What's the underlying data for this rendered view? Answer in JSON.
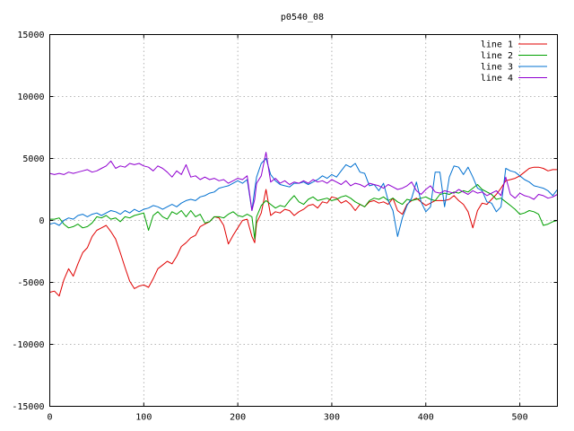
{
  "chart_data": {
    "type": "line",
    "title": "p0540_08",
    "xlabel": "",
    "ylabel": "",
    "xlim": [
      0,
      540
    ],
    "ylim": [
      -15000,
      15000
    ],
    "xticks": [
      0,
      100,
      200,
      300,
      400,
      500
    ],
    "yticks": [
      -15000,
      -10000,
      -5000,
      0,
      5000,
      10000,
      15000
    ],
    "grid": true,
    "legend_position": "top-right",
    "series": [
      {
        "name": "line 1",
        "color": "#e00000",
        "x": [
          0,
          5,
          10,
          15,
          20,
          25,
          30,
          35,
          40,
          45,
          50,
          55,
          60,
          65,
          70,
          75,
          80,
          85,
          90,
          95,
          100,
          105,
          110,
          115,
          120,
          125,
          130,
          135,
          140,
          145,
          150,
          155,
          160,
          165,
          170,
          175,
          180,
          185,
          190,
          195,
          200,
          205,
          210,
          215,
          218,
          220,
          225,
          230,
          235,
          240,
          245,
          250,
          255,
          260,
          265,
          270,
          275,
          280,
          285,
          290,
          295,
          300,
          305,
          310,
          315,
          320,
          325,
          330,
          335,
          340,
          345,
          350,
          355,
          360,
          365,
          370,
          375,
          380,
          385,
          390,
          395,
          400,
          405,
          410,
          415,
          420,
          425,
          430,
          435,
          440,
          445,
          450,
          455,
          460,
          465,
          470,
          475,
          480,
          485,
          490,
          495,
          500,
          505,
          510,
          515,
          520,
          525,
          530,
          535,
          540
        ],
        "y": [
          -5800,
          -5700,
          -6100,
          -4800,
          -3900,
          -4500,
          -3500,
          -2600,
          -2200,
          -1300,
          -800,
          -600,
          -400,
          -900,
          -1500,
          -2600,
          -3800,
          -4900,
          -5500,
          -5300,
          -5200,
          -5400,
          -4700,
          -3900,
          -3600,
          -3300,
          -3500,
          -2900,
          -2100,
          -1800,
          -1400,
          -1200,
          -500,
          -300,
          -100,
          300,
          200,
          -400,
          -1900,
          -1200,
          -600,
          0,
          100,
          -1300,
          -1800,
          -200,
          600,
          2500,
          400,
          700,
          600,
          900,
          800,
          400,
          700,
          900,
          1200,
          1300,
          1000,
          1500,
          1400,
          1900,
          1800,
          1400,
          1600,
          1300,
          800,
          1300,
          1100,
          1500,
          1600,
          1400,
          1500,
          1300,
          1800,
          800,
          500,
          1300,
          1600,
          1800,
          1500,
          1200,
          1400,
          1600,
          1600,
          1600,
          1700,
          2000,
          1600,
          1300,
          700,
          -600,
          800,
          1400,
          1300,
          1700,
          2100,
          2600,
          3200,
          3300,
          3400,
          3600,
          3900,
          4200,
          4300,
          4300,
          4200,
          4000,
          4100,
          4100
        ]
      },
      {
        "name": "line 2",
        "color": "#00a000",
        "x": [
          0,
          5,
          10,
          15,
          20,
          25,
          30,
          35,
          40,
          45,
          50,
          55,
          60,
          65,
          70,
          75,
          80,
          85,
          90,
          95,
          100,
          105,
          110,
          115,
          120,
          125,
          130,
          135,
          140,
          145,
          150,
          155,
          160,
          165,
          170,
          175,
          180,
          185,
          190,
          195,
          200,
          205,
          210,
          215,
          218,
          220,
          225,
          230,
          235,
          240,
          245,
          250,
          255,
          260,
          265,
          270,
          275,
          280,
          285,
          290,
          295,
          300,
          305,
          310,
          315,
          320,
          325,
          330,
          335,
          340,
          345,
          350,
          355,
          360,
          365,
          370,
          375,
          380,
          385,
          390,
          395,
          400,
          405,
          410,
          415,
          420,
          425,
          430,
          435,
          440,
          445,
          450,
          455,
          460,
          465,
          470,
          475,
          480,
          485,
          490,
          495,
          500,
          505,
          510,
          515,
          520,
          525,
          530,
          535,
          540
        ],
        "y": [
          100,
          100,
          200,
          -300,
          -600,
          -500,
          -300,
          -600,
          -500,
          -200,
          300,
          200,
          400,
          100,
          200,
          -100,
          300,
          200,
          400,
          500,
          600,
          -800,
          400,
          700,
          300,
          100,
          700,
          500,
          800,
          300,
          800,
          300,
          500,
          -200,
          -100,
          300,
          300,
          200,
          500,
          700,
          400,
          300,
          500,
          300,
          -1500,
          300,
          1200,
          1600,
          1300,
          1000,
          1200,
          1100,
          1600,
          2000,
          1500,
          1300,
          1700,
          1900,
          1600,
          1700,
          1800,
          1600,
          1700,
          1900,
          2000,
          1800,
          1500,
          1300,
          1100,
          1600,
          1800,
          1700,
          1900,
          1600,
          1800,
          1500,
          1300,
          1700,
          1600,
          1700,
          1800,
          1900,
          1700,
          1600,
          2100,
          2200,
          2100,
          2300,
          2200,
          2400,
          2300,
          2600,
          2900,
          2500,
          2300,
          2100,
          1700,
          1800,
          1500,
          1200,
          900,
          500,
          600,
          800,
          700,
          500,
          -400,
          -300,
          -100,
          0
        ]
      },
      {
        "name": "line 3",
        "color": "#0070d0",
        "x": [
          0,
          5,
          10,
          15,
          20,
          25,
          30,
          35,
          40,
          45,
          50,
          55,
          60,
          65,
          70,
          75,
          80,
          85,
          90,
          95,
          100,
          105,
          110,
          115,
          120,
          125,
          130,
          135,
          140,
          145,
          150,
          155,
          160,
          165,
          170,
          175,
          180,
          185,
          190,
          195,
          200,
          205,
          210,
          215,
          218,
          220,
          225,
          230,
          235,
          240,
          245,
          250,
          255,
          260,
          265,
          270,
          275,
          280,
          285,
          290,
          295,
          300,
          305,
          310,
          315,
          320,
          325,
          330,
          335,
          340,
          345,
          350,
          355,
          360,
          365,
          370,
          375,
          380,
          385,
          390,
          395,
          400,
          405,
          410,
          415,
          420,
          425,
          430,
          435,
          440,
          445,
          450,
          455,
          460,
          465,
          470,
          475,
          480,
          485,
          490,
          495,
          500,
          505,
          510,
          515,
          520,
          525,
          530,
          535,
          540
        ],
        "y": [
          -300,
          -200,
          -400,
          0,
          200,
          100,
          400,
          500,
          300,
          500,
          600,
          400,
          600,
          800,
          700,
          500,
          800,
          600,
          900,
          700,
          900,
          1000,
          1200,
          1100,
          900,
          1100,
          1300,
          1100,
          1400,
          1600,
          1700,
          1600,
          1900,
          2000,
          2200,
          2300,
          2600,
          2700,
          2800,
          3000,
          3200,
          3000,
          3300,
          800,
          2500,
          3500,
          4600,
          5000,
          3700,
          3200,
          2900,
          2800,
          2700,
          3000,
          3000,
          3100,
          2900,
          3100,
          3300,
          3600,
          3400,
          3700,
          3500,
          4000,
          4500,
          4300,
          4600,
          3900,
          3800,
          2800,
          2900,
          2400,
          3000,
          1600,
          800,
          -1300,
          200,
          1200,
          1800,
          3100,
          1500,
          700,
          1100,
          3900,
          3900,
          1100,
          3500,
          4400,
          4300,
          3700,
          4300,
          3500,
          2600,
          2400,
          1500,
          1400,
          700,
          1100,
          4200,
          4000,
          3900,
          3600,
          3300,
          3100,
          2800,
          2700,
          2600,
          2400,
          2000,
          2500
        ]
      },
      {
        "name": "line 4",
        "color": "#9000d0",
        "x": [
          0,
          5,
          10,
          15,
          20,
          25,
          30,
          35,
          40,
          45,
          50,
          55,
          60,
          65,
          70,
          75,
          80,
          85,
          90,
          95,
          100,
          105,
          110,
          115,
          120,
          125,
          130,
          135,
          140,
          145,
          150,
          155,
          160,
          165,
          170,
          175,
          180,
          185,
          190,
          195,
          200,
          205,
          210,
          215,
          218,
          220,
          225,
          230,
          235,
          240,
          245,
          250,
          255,
          260,
          265,
          270,
          275,
          280,
          285,
          290,
          295,
          300,
          305,
          310,
          315,
          320,
          325,
          330,
          335,
          340,
          345,
          350,
          355,
          360,
          365,
          370,
          375,
          380,
          385,
          390,
          395,
          400,
          405,
          410,
          415,
          420,
          425,
          430,
          435,
          440,
          445,
          450,
          455,
          460,
          465,
          470,
          475,
          480,
          485,
          490,
          495,
          500,
          505,
          510,
          515,
          520,
          525,
          530,
          535,
          540
        ],
        "y": [
          3800,
          3700,
          3800,
          3700,
          3900,
          3800,
          3900,
          4000,
          4100,
          3900,
          4000,
          4200,
          4400,
          4800,
          4200,
          4400,
          4300,
          4600,
          4500,
          4600,
          4400,
          4300,
          4000,
          4400,
          4200,
          3900,
          3500,
          4000,
          3700,
          4500,
          3500,
          3600,
          3300,
          3500,
          3300,
          3400,
          3200,
          3300,
          3000,
          3200,
          3400,
          3300,
          3600,
          800,
          1700,
          3000,
          3600,
          5500,
          3100,
          3400,
          3000,
          3200,
          2900,
          3100,
          3000,
          3200,
          3000,
          3300,
          3100,
          3200,
          3000,
          3300,
          3100,
          2900,
          3200,
          2800,
          3000,
          2900,
          2700,
          3000,
          2900,
          2800,
          2600,
          2900,
          2700,
          2500,
          2600,
          2800,
          3100,
          2400,
          2100,
          2500,
          2800,
          2300,
          2200,
          2400,
          2300,
          2200,
          2500,
          2300,
          2100,
          2400,
          2200,
          2300,
          2000,
          2200,
          2400,
          2000,
          3500,
          2100,
          1800,
          2200,
          2000,
          1900,
          1700,
          2100,
          2000,
          1800,
          1900,
          2100
        ]
      }
    ]
  }
}
